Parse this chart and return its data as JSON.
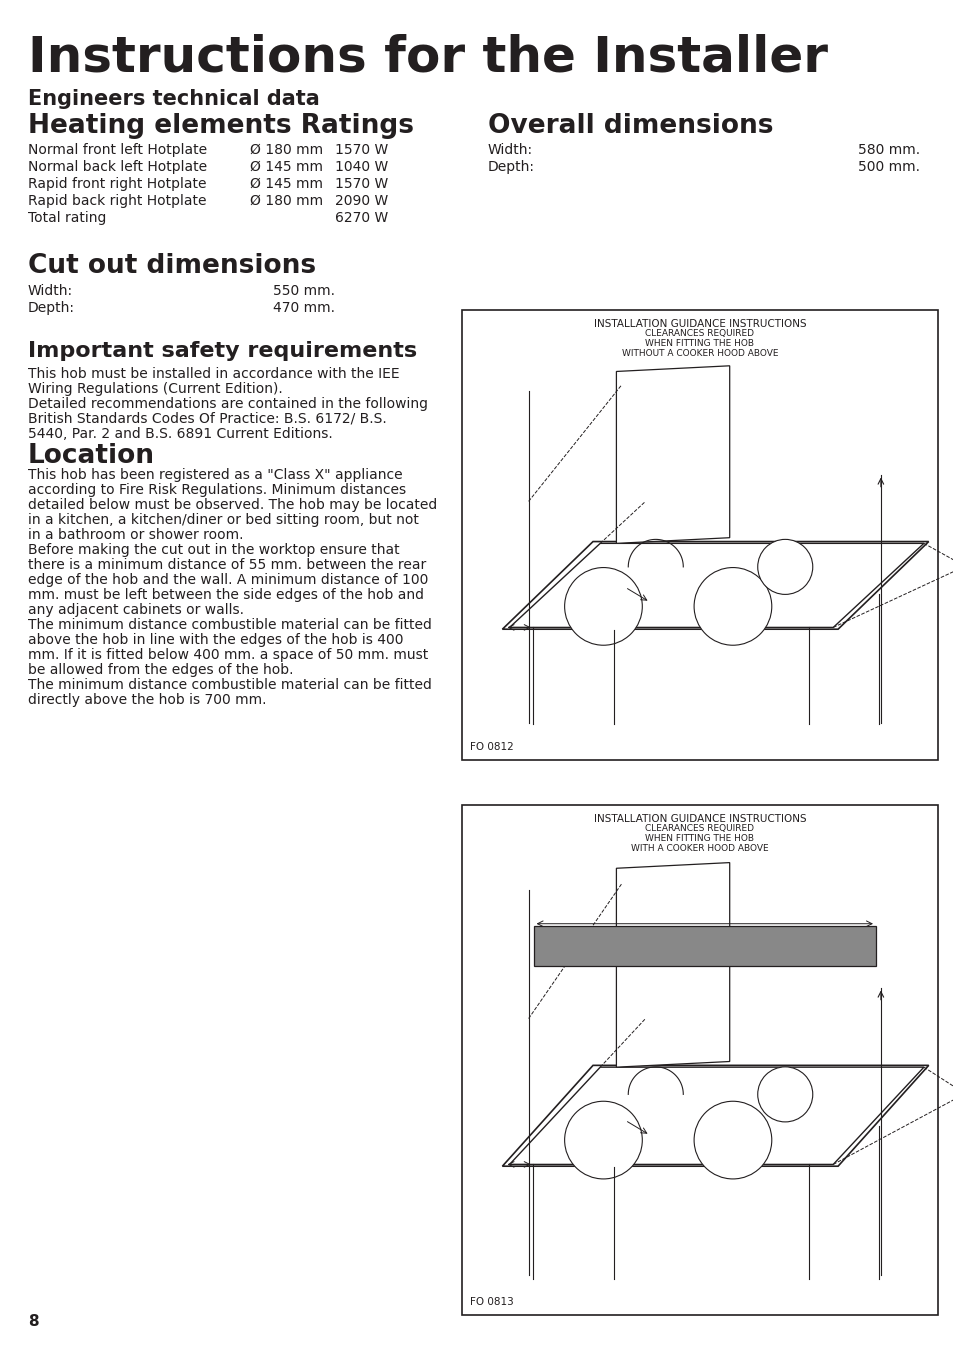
{
  "page_title": "Instructions for the Installer",
  "section1_title": "Engineers technical data",
  "section2_title": "Heating elements Ratings",
  "heating_rows": [
    [
      "Normal front left Hotplate",
      "Ø 180 mm",
      "1570 W"
    ],
    [
      "Normal back left Hotplate",
      "Ø 145 mm",
      "1040 W"
    ],
    [
      "Rapid front right Hotplate",
      "Ø 145 mm",
      "1570 W"
    ],
    [
      "Rapid back right Hotplate",
      "Ø 180 mm",
      "2090 W"
    ],
    [
      "Total rating",
      "",
      "6270 W"
    ]
  ],
  "section3_title": "Cut out dimensions",
  "cutout_dims": [
    [
      "Width:",
      "550 mm."
    ],
    [
      "Depth:",
      "470 mm."
    ]
  ],
  "section4_title": "Overall dimensions",
  "overall_dims": [
    [
      "Width:",
      "580 mm."
    ],
    [
      "Depth:",
      "500 mm."
    ]
  ],
  "section5_title": "Important safety requirements",
  "safety_lines": [
    "This hob must be installed in accordance with the IEE",
    "Wiring Regulations (Current Edition).",
    "Detailed recommendations are contained in the following",
    "British Standards Codes Of Practice: B.S. 6172/ B.S.",
    "5440, Par. 2 and B.S. 6891 Current Editions."
  ],
  "section6_title": "Location",
  "location_lines": [
    "This hob has been registered as a \"Class X\" appliance",
    "according to Fire Risk Regulations. Minimum distances",
    "detailed below must be observed. The hob may be located",
    "in a kitchen, a kitchen/diner or bed sitting room, but not",
    "in a bathroom or shower room.",
    "Before making the cut out in the worktop ensure that",
    "there is a minimum distance of 55 mm. between the rear",
    "edge of the hob and the wall. A minimum distance of 100",
    "mm. must be left between the side edges of the hob and",
    "any adjacent cabinets or walls.",
    "The minimum distance combustible material can be fitted",
    "above the hob in line with the edges of the hob is 400",
    "mm. If it is fitted below 400 mm. a space of 50 mm. must",
    "be allowed from the edges of the hob.",
    "The minimum distance combustible material can be fitted",
    "directly above the hob is 700 mm."
  ],
  "diagram1_lines": [
    "INSTALLATION GUIDANCE INSTRUCTIONS",
    "CLEARANCES REQUIRED",
    "WHEN FITTING THE HOB",
    "WITHOUT A COOKER HOOD ABOVE"
  ],
  "diagram1_ref": "FO 0812",
  "diagram2_lines": [
    "INSTALLATION GUIDANCE INSTRUCTIONS",
    "CLEARANCES REQUIRED",
    "WHEN FITTING THE HOB",
    "WITH A COOKER HOOD ABOVE"
  ],
  "diagram2_ref": "FO 0813",
  "page_number": "8",
  "bg_color": "#ffffff",
  "text_color": "#231f20"
}
